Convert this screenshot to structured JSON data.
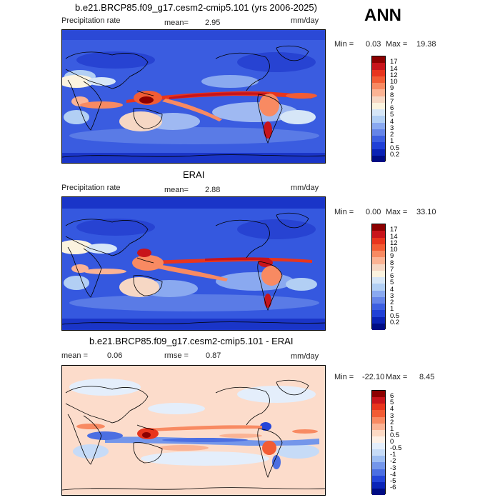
{
  "header": {
    "season": "ANN"
  },
  "panels": [
    {
      "title": "b.e21.BRCP85.f09_g17.cesm2-cmip5.101 (yrs 2006-2025)",
      "left_text": "Precipitation rate",
      "stat1_label": "mean=",
      "stat1_value": "2.95",
      "units": "mm/day",
      "min_label": "Min =",
      "min_value": "0.03",
      "max_label": "Max =",
      "max_value": "19.38",
      "colorbar": {
        "labels": [
          "17",
          "14",
          "12",
          "10",
          "9",
          "8",
          "7",
          "6",
          "5",
          "4",
          "3",
          "2",
          "1",
          "0.5",
          "0.2"
        ],
        "colors": [
          "#8c0000",
          "#c8141b",
          "#e8351d",
          "#f25c34",
          "#f88a62",
          "#fbb394",
          "#f6d7c4",
          "#fbf3df",
          "#d6e6f7",
          "#b2cff4",
          "#8aa9f0",
          "#6685e8",
          "#3d5fe0",
          "#2040d6",
          "#0a22b4",
          "#000c84"
        ]
      },
      "map": {
        "type": "absolute-precip"
      }
    },
    {
      "title": "ERAI",
      "left_text": "Precipitation rate",
      "stat1_label": "mean=",
      "stat1_value": "2.88",
      "units": "mm/day",
      "min_label": "Min =",
      "min_value": "0.00",
      "max_label": "Max =",
      "max_value": "33.10",
      "colorbar": {
        "labels": [
          "17",
          "14",
          "12",
          "10",
          "9",
          "8",
          "7",
          "6",
          "5",
          "4",
          "3",
          "2",
          "1",
          "0.5",
          "0.2"
        ],
        "colors": [
          "#8c0000",
          "#c8141b",
          "#e8351d",
          "#f25c34",
          "#f88a62",
          "#fbb394",
          "#f6d7c4",
          "#fbf3df",
          "#d6e6f7",
          "#b2cff4",
          "#8aa9f0",
          "#6685e8",
          "#3d5fe0",
          "#2040d6",
          "#0a22b4",
          "#000c84"
        ]
      },
      "map": {
        "type": "absolute-precip"
      }
    },
    {
      "title": "b.e21.BRCP85.f09_g17.cesm2-cmip5.101 - ERAI",
      "left_text": "",
      "stat1_label": "mean =",
      "stat1_value": "0.06",
      "stat2_label": "rmse =",
      "stat2_value": "0.87",
      "units": "mm/day",
      "min_label": "Min =",
      "min_value": "-22.10",
      "max_label": "Max =",
      "max_value": "8.45",
      "colorbar": {
        "labels": [
          "6",
          "5",
          "4",
          "3",
          "2",
          "1",
          "0.5",
          "0",
          "-0.5",
          "-1",
          "-2",
          "-3",
          "-4",
          "-5",
          "-6"
        ],
        "colors": [
          "#8c0000",
          "#c8141b",
          "#e8351d",
          "#f25c34",
          "#f88a62",
          "#fbb394",
          "#fcd9c4",
          "#fdf0e6",
          "#e4eefb",
          "#c6dbf7",
          "#9dbdf2",
          "#7496ea",
          "#4c6fe2",
          "#2445d8",
          "#0b25b8",
          "#000c84"
        ]
      },
      "map": {
        "type": "difference"
      }
    }
  ]
}
